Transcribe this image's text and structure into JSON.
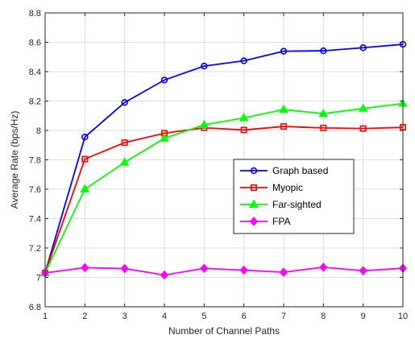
{
  "chart_data": {
    "type": "line",
    "x": [
      1,
      2,
      3,
      4,
      5,
      6,
      7,
      8,
      9,
      10
    ],
    "xlabel": "Number of Channel Paths",
    "ylabel": "Average Rate (bps/Hz)",
    "xlim": [
      1,
      10
    ],
    "ylim": [
      6.8,
      8.8
    ],
    "xticks": [
      1,
      2,
      3,
      4,
      5,
      6,
      7,
      8,
      9,
      10
    ],
    "yticks": [
      6.8,
      7,
      7.2,
      7.4,
      7.6,
      7.8,
      8,
      8.2,
      8.4,
      8.6,
      8.8
    ],
    "xtick_labels": [
      "1",
      "2",
      "3",
      "4",
      "5",
      "6",
      "7",
      "8",
      "9",
      "10"
    ],
    "ytick_labels": [
      "6.8",
      "7",
      "7.2",
      "7.4",
      "7.6",
      "7.8",
      "8",
      "8.2",
      "8.4",
      "8.6",
      "8.8"
    ],
    "grid": true,
    "legend_position": "center-right",
    "series": [
      {
        "name": "Graph based",
        "color": "#0000ff",
        "marker": "circle",
        "values": [
          7.03,
          7.955,
          8.19,
          8.343,
          8.438,
          8.474,
          8.539,
          8.542,
          8.563,
          8.586
        ]
      },
      {
        "name": "Myopic",
        "color": "#ff0000",
        "marker": "square",
        "values": [
          7.03,
          7.805,
          7.917,
          7.981,
          8.018,
          8.003,
          8.027,
          8.017,
          8.013,
          8.021
        ]
      },
      {
        "name": "Far-sighted",
        "color": "#00ff00",
        "marker": "triangle",
        "values": [
          7.03,
          7.6,
          7.782,
          7.946,
          8.038,
          8.085,
          8.142,
          8.114,
          8.149,
          8.183
        ]
      },
      {
        "name": "FPA",
        "color": "#ff00ff",
        "marker": "diamond",
        "values": [
          7.03,
          7.066,
          7.06,
          7.016,
          7.061,
          7.049,
          7.035,
          7.069,
          7.045,
          7.062
        ]
      }
    ]
  }
}
